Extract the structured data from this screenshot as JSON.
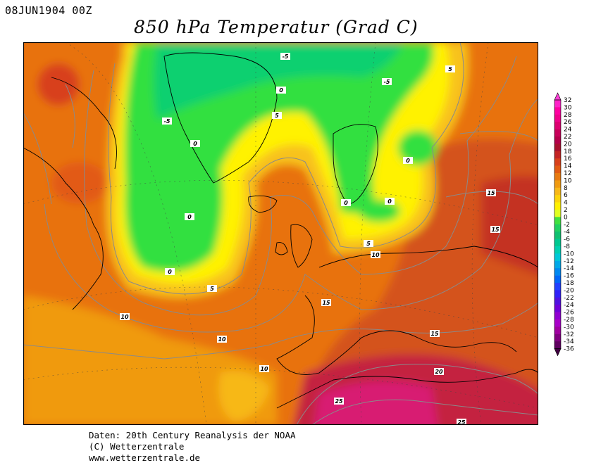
{
  "header": {
    "datetime": "08JUN1904 00Z",
    "title": "850 hPa Temperatur (Grad C)"
  },
  "map": {
    "contour_labels": [
      "-5",
      "-5",
      "-5",
      "0",
      "0",
      "0",
      "0",
      "0",
      "0",
      "0",
      "5",
      "5",
      "5",
      "5",
      "10",
      "10",
      "10",
      "10",
      "15",
      "15",
      "15",
      "15",
      "20",
      "25",
      "25"
    ]
  },
  "colorbar": {
    "labels": [
      "32",
      "30",
      "28",
      "26",
      "24",
      "22",
      "20",
      "18",
      "16",
      "14",
      "12",
      "10",
      "8",
      "6",
      "4",
      "2",
      "0",
      "-2",
      "-4",
      "-6",
      "-8",
      "-10",
      "-12",
      "-14",
      "-16",
      "-18",
      "-20",
      "-22",
      "-24",
      "-26",
      "-28",
      "-30",
      "-32",
      "-34",
      "-36"
    ],
    "colors": [
      "#ff22c8",
      "#ff00a0",
      "#f0008a",
      "#dd0070",
      "#c8005a",
      "#b4004a",
      "#a8102e",
      "#c42424",
      "#d8401a",
      "#e25a12",
      "#e87a10",
      "#f09a10",
      "#f7b818",
      "#fcd40a",
      "#fff000",
      "#e0ff20",
      "#40e040",
      "#20d060",
      "#10c070",
      "#00c890",
      "#00d0b0",
      "#00c8d8",
      "#00a8e8",
      "#0088f0",
      "#0066f8",
      "#2040ff",
      "#3020f8",
      "#5010e0",
      "#7000d8",
      "#9000d0",
      "#a800c8",
      "#a000a0",
      "#800080",
      "#600060"
    ]
  },
  "credits": {
    "line1": "Daten: 20th Century Reanalysis der NOAA",
    "line2": "(C) Wetterzentrale",
    "line3": "www.wetterzentrale.de"
  }
}
